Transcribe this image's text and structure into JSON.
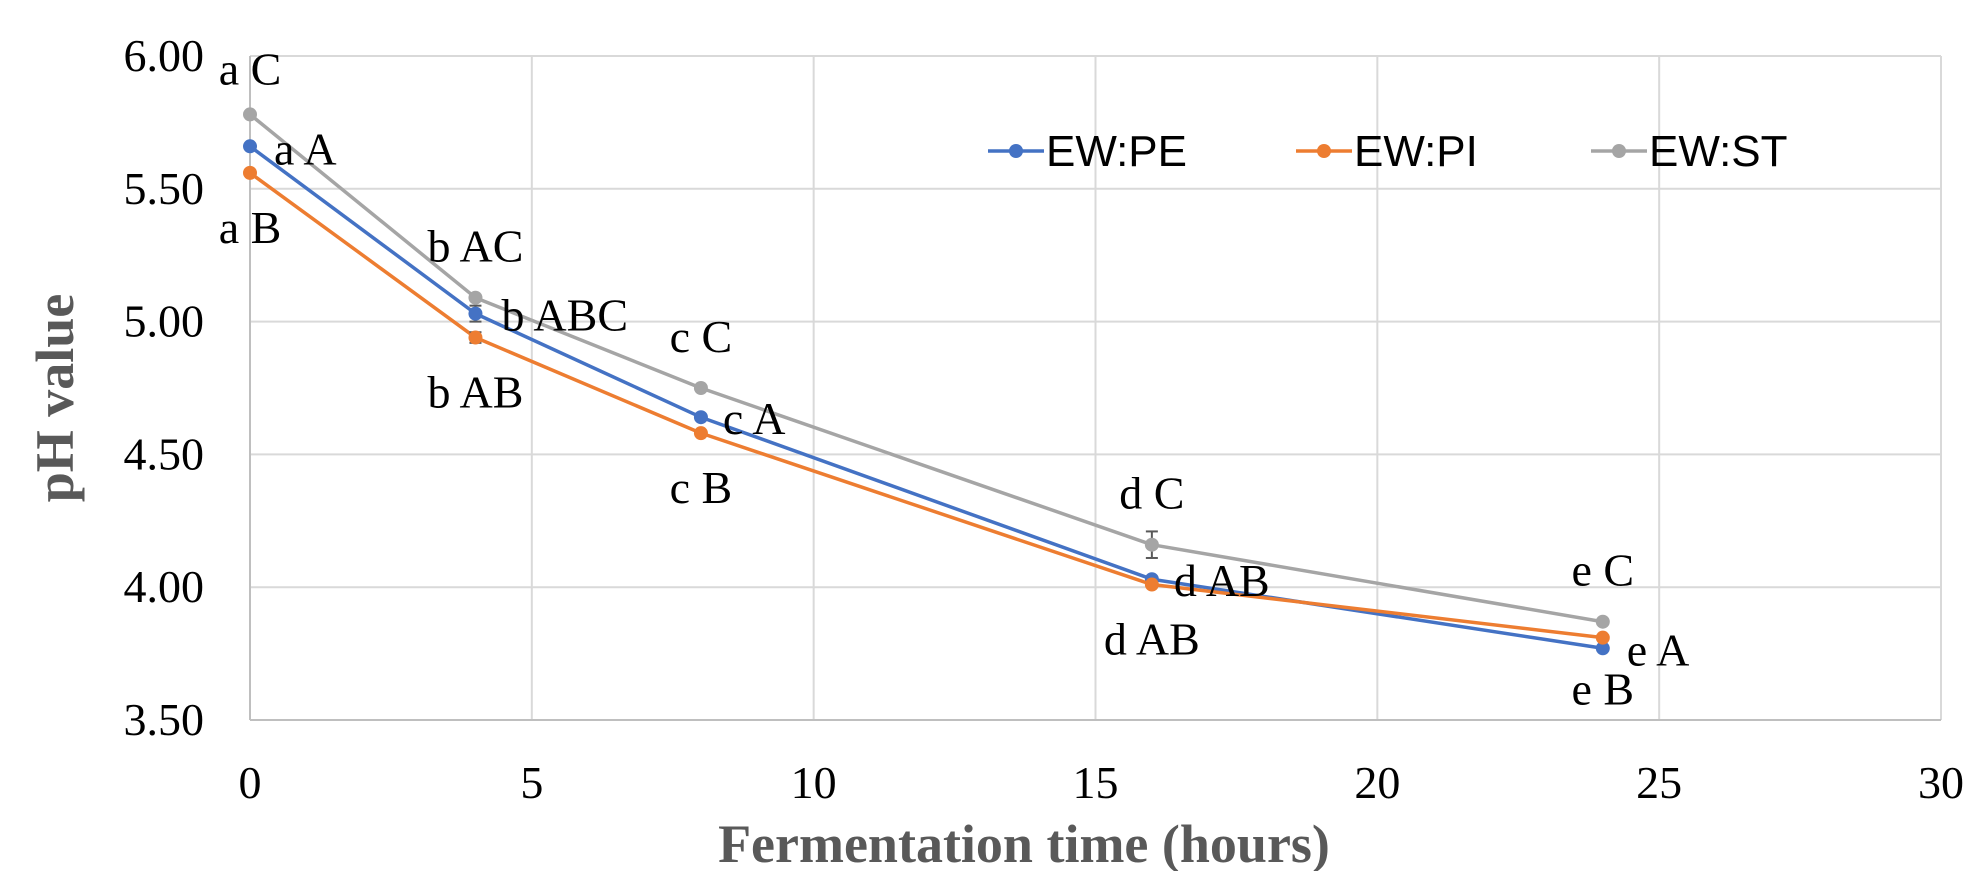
{
  "chart_data": {
    "type": "line",
    "xlabel": "Fermentation time (hours)",
    "ylabel": "pH value",
    "xlim": [
      0,
      30
    ],
    "ylim": [
      3.5,
      6.0
    ],
    "xticks": [
      "0",
      "5",
      "10",
      "15",
      "20",
      "25",
      "30"
    ],
    "yticks": [
      "3.50",
      "4.00",
      "4.50",
      "5.00",
      "5.50",
      "6.00"
    ],
    "grid": true,
    "legend_position": "top-right",
    "x": [
      0,
      4,
      8,
      16,
      24
    ],
    "series": [
      {
        "name": "EW:PE",
        "color": "#4472C4",
        "values": [
          5.66,
          5.03,
          4.64,
          4.03,
          3.77
        ],
        "errors": [
          0,
          0.03,
          0,
          0,
          0
        ],
        "labels": [
          "a A",
          "b ABC",
          "c A",
          "d AB",
          "e A"
        ]
      },
      {
        "name": "EW:PI",
        "color": "#ED7D31",
        "values": [
          5.56,
          4.94,
          4.58,
          4.01,
          3.81
        ],
        "errors": [
          0,
          0.02,
          0,
          0,
          0
        ],
        "labels": [
          "a B",
          "b AB",
          "c B",
          "d AB",
          "e B"
        ]
      },
      {
        "name": "EW:ST",
        "color": "#A5A5A5",
        "values": [
          5.78,
          5.09,
          4.75,
          4.16,
          3.87
        ],
        "errors": [
          0,
          0,
          0,
          0.05,
          0
        ],
        "labels": [
          "a C",
          "b AC",
          "c C",
          "d C",
          "e C"
        ]
      }
    ]
  }
}
